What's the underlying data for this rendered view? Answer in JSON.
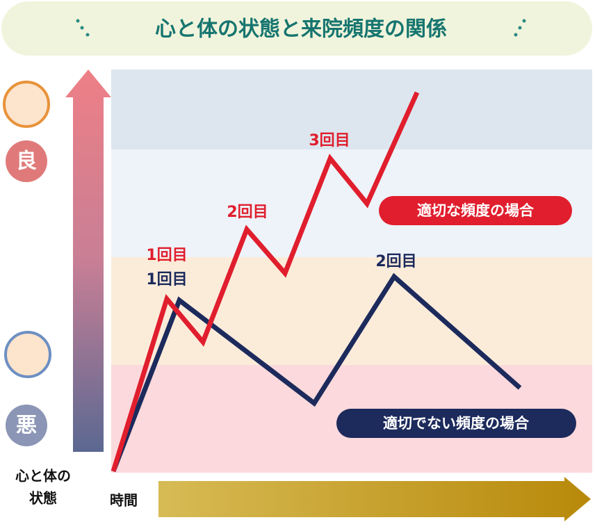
{
  "title": "心と体の状態と来院頻度の関係",
  "axis": {
    "y_top": "良",
    "y_bottom": "悪",
    "y_label": [
      "心と体の",
      "状態"
    ],
    "x_label": "時間"
  },
  "annotations": {
    "red": [
      "1回目",
      "2回目",
      "3回目"
    ],
    "navy": [
      "1回目",
      "2回目"
    ]
  },
  "legend": {
    "appropriate": "適切な頻度の場合",
    "inappropriate": "適切でない頻度の場合"
  }
}
